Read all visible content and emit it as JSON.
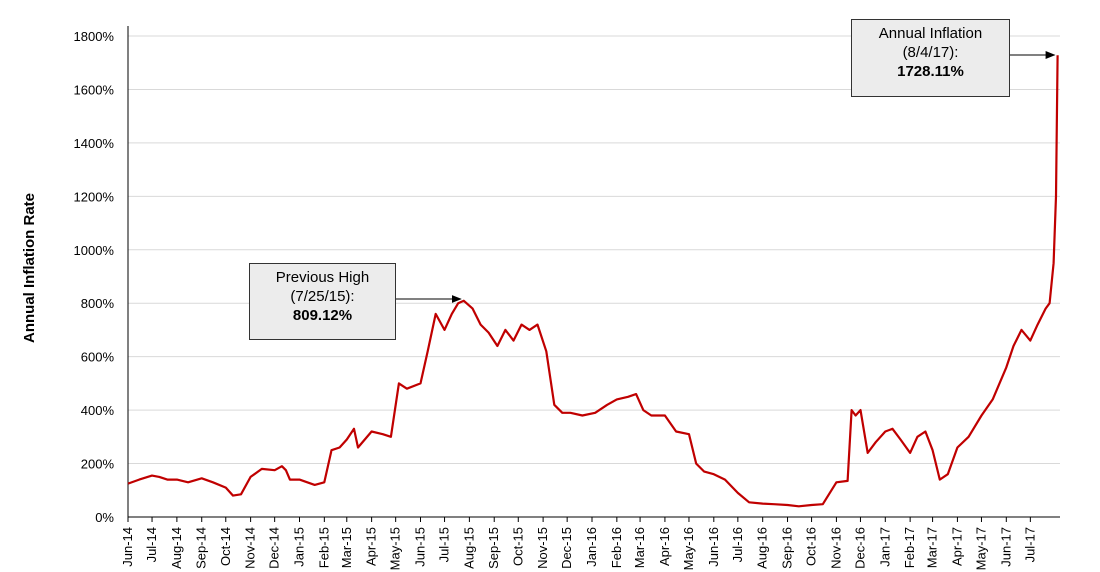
{
  "chart_data": {
    "type": "line",
    "title": "",
    "xlabel": "",
    "ylabel": "Annual Inflation Rate",
    "ylim": [
      0,
      1800
    ],
    "yticks": [
      "0%",
      "200%",
      "400%",
      "600%",
      "800%",
      "1000%",
      "1200%",
      "1400%",
      "1600%",
      "1800%"
    ],
    "xtick_labels": [
      "Jun-14",
      "Jul-14",
      "Aug-14",
      "Sep-14",
      "Oct-14",
      "Nov-14",
      "Dec-14",
      "Jan-15",
      "Feb-15",
      "Mar-15",
      "Apr-15",
      "May-15",
      "Jun-15",
      "Jul-15",
      "Aug-15",
      "Sep-15",
      "Oct-15",
      "Nov-15",
      "Dec-15",
      "Jan-16",
      "Feb-16",
      "Mar-16",
      "Apr-16",
      "May-16",
      "Jun-16",
      "Jul-16",
      "Aug-16",
      "Sep-16",
      "Oct-16",
      "Nov-16",
      "Dec-16",
      "Jan-17",
      "Feb-17",
      "Mar-17",
      "Apr-17",
      "May-17",
      "Jun-17",
      "Jul-17"
    ],
    "grid": true,
    "series_color": "#c00000",
    "series": [
      {
        "x": [
          "2014-06-01",
          "2014-06-15",
          "2014-07-01",
          "2014-07-10",
          "2014-07-20",
          "2014-08-01",
          "2014-08-15",
          "2014-09-01",
          "2014-09-15",
          "2014-10-01",
          "2014-10-10",
          "2014-10-20",
          "2014-11-01",
          "2014-11-15",
          "2014-12-01",
          "2014-12-10",
          "2014-12-15",
          "2014-12-20",
          "2015-01-01",
          "2015-01-20",
          "2015-02-01",
          "2015-02-10",
          "2015-02-20",
          "2015-03-01",
          "2015-03-10",
          "2015-03-15",
          "2015-04-01",
          "2015-04-15",
          "2015-04-25",
          "2015-05-05",
          "2015-05-15",
          "2015-06-01",
          "2015-06-10",
          "2015-06-20",
          "2015-07-01",
          "2015-07-10",
          "2015-07-18",
          "2015-07-25",
          "2015-08-05",
          "2015-08-15",
          "2015-08-25",
          "2015-09-05",
          "2015-09-15",
          "2015-09-25",
          "2015-10-05",
          "2015-10-15",
          "2015-10-25",
          "2015-11-05",
          "2015-11-15",
          "2015-11-25",
          "2015-12-05",
          "2015-12-20",
          "2016-01-05",
          "2016-01-20",
          "2016-02-01",
          "2016-02-15",
          "2016-02-25",
          "2016-03-05",
          "2016-03-15",
          "2016-04-01",
          "2016-04-15",
          "2016-05-01",
          "2016-05-10",
          "2016-05-20",
          "2016-06-01",
          "2016-06-15",
          "2016-07-01",
          "2016-07-15",
          "2016-08-01",
          "2016-08-15",
          "2016-09-01",
          "2016-09-15",
          "2016-10-01",
          "2016-10-15",
          "2016-11-01",
          "2016-11-15",
          "2016-11-20",
          "2016-11-25",
          "2016-12-01",
          "2016-12-10",
          "2016-12-20",
          "2017-01-01",
          "2017-01-10",
          "2017-01-20",
          "2017-02-01",
          "2017-02-10",
          "2017-02-20",
          "2017-03-01",
          "2017-03-10",
          "2017-03-20",
          "2017-04-01",
          "2017-04-15",
          "2017-05-01",
          "2017-05-15",
          "2017-06-01",
          "2017-06-10",
          "2017-06-20",
          "2017-07-01",
          "2017-07-10",
          "2017-07-20",
          "2017-07-25",
          "2017-07-30",
          "2017-08-02",
          "2017-08-04"
        ],
        "y": [
          125,
          140,
          155,
          150,
          140,
          140,
          130,
          145,
          130,
          110,
          80,
          85,
          150,
          180,
          175,
          190,
          175,
          140,
          140,
          120,
          130,
          250,
          260,
          290,
          330,
          260,
          320,
          310,
          300,
          500,
          480,
          500,
          620,
          760,
          700,
          760,
          800,
          809,
          780,
          720,
          690,
          640,
          700,
          660,
          720,
          700,
          720,
          620,
          420,
          390,
          390,
          380,
          390,
          420,
          440,
          450,
          460,
          400,
          380,
          380,
          320,
          310,
          200,
          170,
          160,
          140,
          90,
          55,
          50,
          48,
          45,
          40,
          45,
          48,
          130,
          135,
          400,
          380,
          400,
          240,
          280,
          320,
          330,
          290,
          240,
          300,
          320,
          250,
          140,
          160,
          260,
          300,
          380,
          440,
          560,
          640,
          700,
          660,
          720,
          780,
          800,
          950,
          1200,
          1728.11
        ]
      }
    ],
    "annotations": [
      {
        "line1": "Previous High",
        "line2": "(7/25/15):",
        "value": "809.12%",
        "date": "2015-07-25",
        "y": 809.12
      },
      {
        "line1": "Annual Inflation",
        "line2": "(8/4/17):",
        "value": "1728.11%",
        "date": "2017-08-04",
        "y": 1728.11
      }
    ]
  }
}
